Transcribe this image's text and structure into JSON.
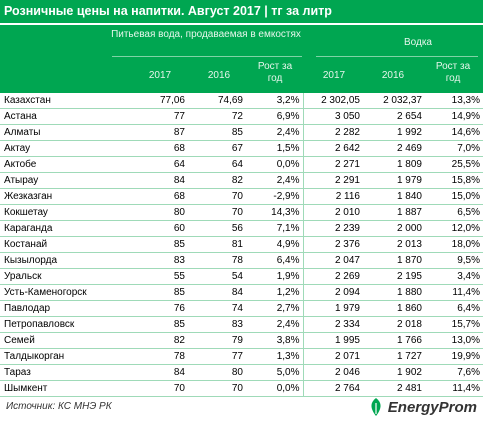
{
  "title": "Розничные цены на напитки. Август 2017 | тг за литр",
  "groups": {
    "water": "Питьевая вода, продаваемая в емкостях",
    "vodka": "Водка"
  },
  "columns": {
    "water_2017": "2017",
    "water_2016": "2016",
    "water_growth": "Рост за год",
    "vodka_2017": "2017",
    "vodka_2016": "2016",
    "vodka_growth": "Рост за год"
  },
  "rows": [
    [
      "Казахстан",
      "77,06",
      "74,69",
      "3,2%",
      "2 302,05",
      "2 032,37",
      "13,3%"
    ],
    [
      "Астана",
      "77",
      "72",
      "6,9%",
      "3 050",
      "2 654",
      "14,9%"
    ],
    [
      "Алматы",
      "87",
      "85",
      "2,4%",
      "2 282",
      "1 992",
      "14,6%"
    ],
    [
      "Актау",
      "68",
      "67",
      "1,5%",
      "2 642",
      "2 469",
      "7,0%"
    ],
    [
      "Актобе",
      "64",
      "64",
      "0,0%",
      "2 271",
      "1 809",
      "25,5%"
    ],
    [
      "Атырау",
      "84",
      "82",
      "2,4%",
      "2 291",
      "1 979",
      "15,8%"
    ],
    [
      "Жезказган",
      "68",
      "70",
      "-2,9%",
      "2 116",
      "1 840",
      "15,0%"
    ],
    [
      "Кокшетау",
      "80",
      "70",
      "14,3%",
      "2 010",
      "1 887",
      "6,5%"
    ],
    [
      "Караганда",
      "60",
      "56",
      "7,1%",
      "2 239",
      "2 000",
      "12,0%"
    ],
    [
      "Костанай",
      "85",
      "81",
      "4,9%",
      "2 376",
      "2 013",
      "18,0%"
    ],
    [
      "Кызылорда",
      "83",
      "78",
      "6,4%",
      "2 047",
      "1 870",
      "9,5%"
    ],
    [
      "Уральск",
      "55",
      "54",
      "1,9%",
      "2 269",
      "2 195",
      "3,4%"
    ],
    [
      "Усть-Каменогорск",
      "85",
      "84",
      "1,2%",
      "2 094",
      "1 880",
      "11,4%"
    ],
    [
      "Павлодар",
      "76",
      "74",
      "2,7%",
      "1 979",
      "1 860",
      "6,4%"
    ],
    [
      "Петропавловск",
      "85",
      "83",
      "2,4%",
      "2 334",
      "2 018",
      "15,7%"
    ],
    [
      "Семей",
      "82",
      "79",
      "3,8%",
      "1 995",
      "1 766",
      "13,0%"
    ],
    [
      "Талдыкорган",
      "78",
      "77",
      "1,3%",
      "2 071",
      "1 727",
      "19,9%"
    ],
    [
      "Тараз",
      "84",
      "80",
      "5,0%",
      "2 046",
      "1 902",
      "7,6%"
    ],
    [
      "Шымкент",
      "70",
      "70",
      "0,0%",
      "2 764",
      "2 481",
      "11,4%"
    ]
  ],
  "source": "Источник: КС МНЭ РК",
  "logo": {
    "text": "EnergyProm",
    "icon": "energyprom-leaf-icon",
    "color": "#00a651"
  },
  "colors": {
    "header_bg": "#00a651",
    "row_border": "#9fdab8"
  }
}
